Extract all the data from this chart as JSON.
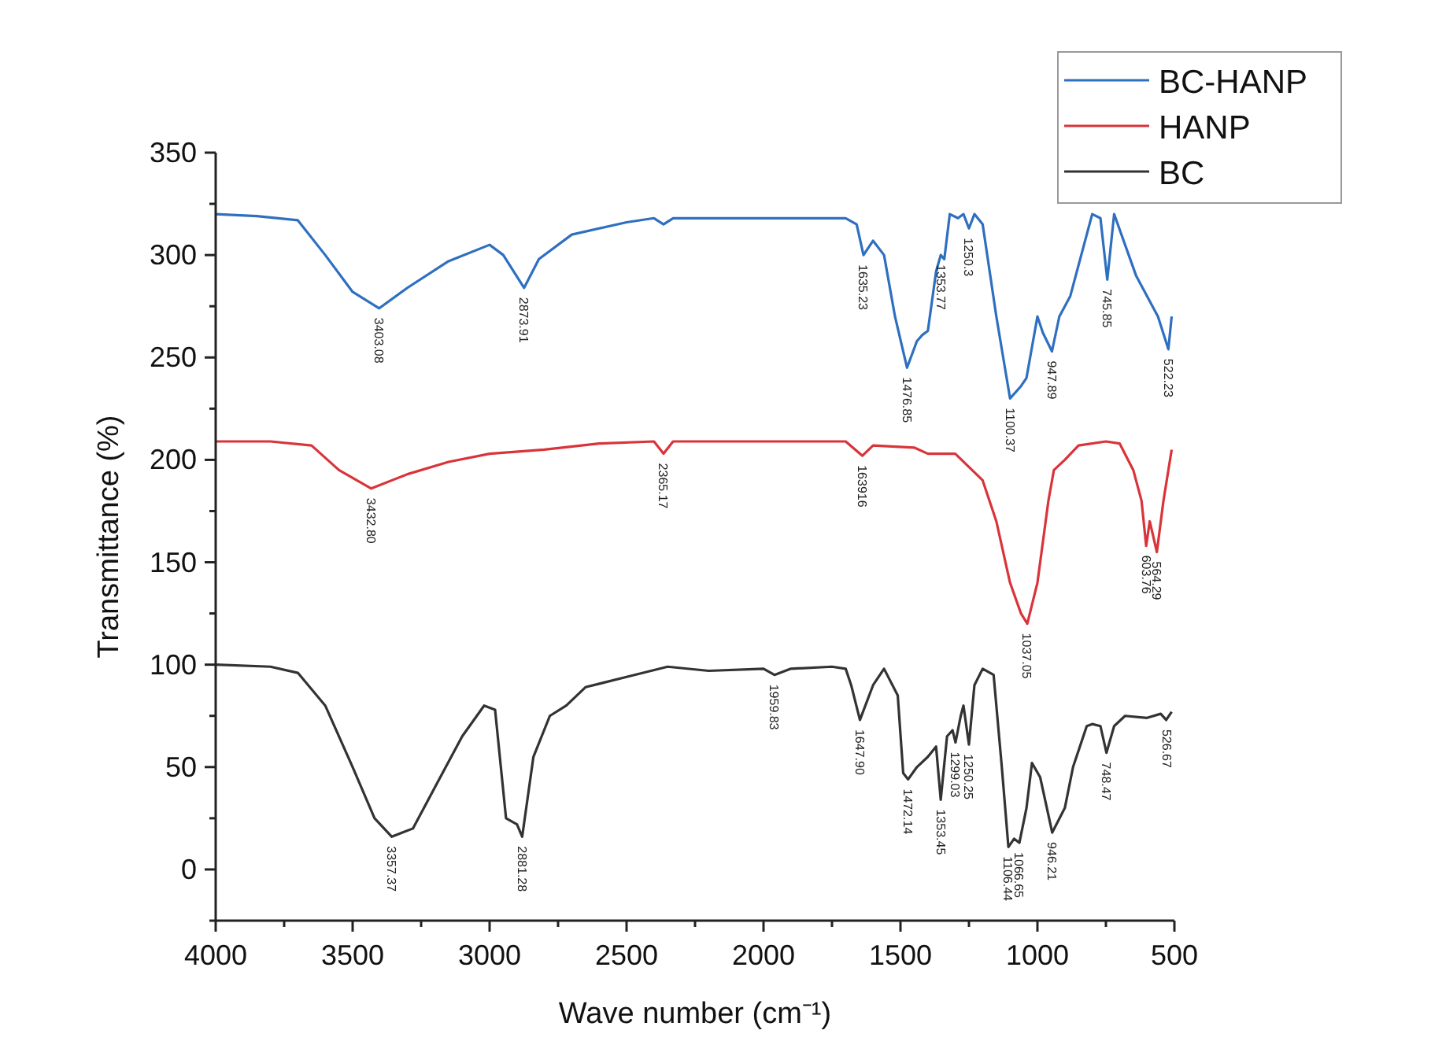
{
  "chart_data": {
    "type": "line",
    "xlabel": "Wave number (cm⁻¹)",
    "ylabel": "Transmittance (%)",
    "xlim": [
      4000,
      500
    ],
    "ylim": [
      -25,
      350
    ],
    "xticks": [
      4000,
      {
        "value": 3750,
        "label": null
      },
      3500,
      {
        "value": 3250,
        "label": null
      },
      3000,
      {
        "value": 2750,
        "label": null
      },
      2500,
      {
        "value": 2250,
        "label": null
      },
      2000,
      {
        "value": 1750,
        "label": null
      },
      1500,
      {
        "value": 1250,
        "label": null
      },
      1000,
      {
        "value": 750,
        "label": null
      },
      500
    ],
    "yticks": [
      {
        "value": -25,
        "label": null
      },
      0,
      {
        "value": 25,
        "label": null
      },
      50,
      {
        "value": 75,
        "label": null
      },
      100,
      {
        "value": 125,
        "label": null
      },
      150,
      {
        "value": 175,
        "label": null
      },
      200,
      {
        "value": 225,
        "label": null
      },
      250,
      {
        "value": 275,
        "label": null
      },
      300,
      {
        "value": 325,
        "label": null
      },
      350
    ],
    "legend": "top right",
    "grid": false,
    "marker": "none",
    "line_style": "solid",
    "series": [
      {
        "name": "BC-HANP",
        "color": "#2f6fc0",
        "x": [
          4000,
          3850,
          3700,
          3600,
          3500,
          3403,
          3300,
          3150,
          3000,
          2950,
          2874,
          2820,
          2700,
          2500,
          2400,
          2365,
          2330,
          2000,
          1700,
          1660,
          1635,
          1600,
          1560,
          1520,
          1476,
          1440,
          1420,
          1400,
          1370,
          1353,
          1340,
          1320,
          1290,
          1270,
          1250,
          1230,
          1200,
          1150,
          1100,
          1060,
          1040,
          1000,
          980,
          947,
          920,
          880,
          800,
          770,
          745,
          720,
          680,
          640,
          600,
          560,
          522,
          510
        ],
        "values": [
          320,
          319,
          317,
          300,
          282,
          274,
          284,
          297,
          305,
          300,
          284,
          298,
          310,
          316,
          318,
          315,
          318,
          318,
          318,
          315,
          300,
          307,
          300,
          270,
          245,
          258,
          261,
          263,
          292,
          300,
          298,
          320,
          318,
          320,
          313,
          320,
          315,
          270,
          230,
          236,
          240,
          270,
          262,
          253,
          270,
          280,
          320,
          318,
          288,
          320,
          305,
          290,
          280,
          270,
          254,
          270
        ]
      },
      {
        "name": "HANP",
        "color": "#d9343a",
        "x": [
          4000,
          3800,
          3650,
          3550,
          3432,
          3300,
          3150,
          3000,
          2800,
          2600,
          2400,
          2365,
          2330,
          2000,
          1700,
          1639,
          1600,
          1450,
          1400,
          1300,
          1200,
          1150,
          1100,
          1060,
          1037,
          1000,
          960,
          940,
          900,
          850,
          750,
          700,
          650,
          620,
          603,
          590,
          564,
          540,
          510
        ],
        "values": [
          209,
          209,
          207,
          195,
          186,
          193,
          199,
          203,
          205,
          208,
          209,
          203,
          209,
          209,
          209,
          202,
          207,
          206,
          203,
          203,
          190,
          170,
          140,
          125,
          120,
          140,
          180,
          195,
          200,
          207,
          209,
          208,
          195,
          180,
          158,
          170,
          155,
          180,
          205
        ]
      },
      {
        "name": "BC",
        "color": "#333333",
        "x": [
          4000,
          3800,
          3700,
          3600,
          3500,
          3420,
          3357,
          3280,
          3200,
          3100,
          3020,
          2980,
          2940,
          2900,
          2881,
          2840,
          2780,
          2720,
          2650,
          2500,
          2350,
          2200,
          2000,
          1960,
          1900,
          1750,
          1700,
          1680,
          1648,
          1600,
          1560,
          1510,
          1490,
          1472,
          1440,
          1400,
          1370,
          1353,
          1330,
          1310,
          1299,
          1280,
          1270,
          1250,
          1230,
          1200,
          1160,
          1130,
          1106,
          1085,
          1066,
          1040,
          1020,
          990,
          946,
          900,
          870,
          820,
          800,
          770,
          748,
          720,
          680,
          600,
          550,
          530,
          510
        ],
        "values": [
          100,
          99,
          96,
          80,
          50,
          25,
          16,
          20,
          40,
          65,
          80,
          78,
          25,
          22,
          16,
          55,
          75,
          80,
          89,
          94,
          99,
          97,
          98,
          95,
          98,
          99,
          98,
          90,
          73,
          90,
          98,
          85,
          47,
          44,
          50,
          55,
          60,
          34,
          65,
          68,
          62,
          75,
          80,
          61,
          90,
          98,
          95,
          50,
          11,
          15,
          13,
          30,
          52,
          45,
          18,
          30,
          50,
          70,
          71,
          70,
          57,
          70,
          75,
          74,
          76,
          73,
          77
        ]
      }
    ],
    "annotations": [
      {
        "text": "3403.08",
        "x": 3403,
        "y": 274
      },
      {
        "text": "2873.91",
        "x": 2874,
        "y": 284
      },
      {
        "text": "1635.23",
        "x": 1635,
        "y": 300
      },
      {
        "text": "1476.85",
        "x": 1476,
        "y": 245
      },
      {
        "text": "1353.77",
        "x": 1353,
        "y": 300
      },
      {
        "text": "1250.3",
        "x": 1250,
        "y": 313
      },
      {
        "text": "1100.37",
        "x": 1100,
        "y": 230
      },
      {
        "text": "947.89",
        "x": 947,
        "y": 253
      },
      {
        "text": "745.85",
        "x": 745,
        "y": 288
      },
      {
        "text": "522.23",
        "x": 522,
        "y": 254
      },
      {
        "text": "3432.80",
        "x": 3432,
        "y": 186
      },
      {
        "text": "2365.17",
        "x": 2365,
        "y": 203
      },
      {
        "text": "163916",
        "x": 1639,
        "y": 202
      },
      {
        "text": "1037.05",
        "x": 1037,
        "y": 120
      },
      {
        "text": "603.76",
        "x": 603,
        "y": 158
      },
      {
        "text": "564.29",
        "x": 564,
        "y": 155
      },
      {
        "text": "3357.37",
        "x": 3357,
        "y": 16
      },
      {
        "text": "2881.28",
        "x": 2881,
        "y": 16
      },
      {
        "text": "1959.83",
        "x": 1960,
        "y": 95
      },
      {
        "text": "1647.90",
        "x": 1648,
        "y": 73
      },
      {
        "text": "1472.14",
        "x": 1472,
        "y": 44
      },
      {
        "text": "1353.45",
        "x": 1353,
        "y": 34
      },
      {
        "text": "1299.03",
        "x": 1299,
        "y": 62
      },
      {
        "text": "1250.25",
        "x": 1250,
        "y": 61
      },
      {
        "text": "1106.44",
        "x": 1106,
        "y": 11
      },
      {
        "text": "1066.65",
        "x": 1066,
        "y": 13
      },
      {
        "text": "946.21",
        "x": 946,
        "y": 18
      },
      {
        "text": "748.47",
        "x": 748,
        "y": 57
      },
      {
        "text": "526.67",
        "x": 526,
        "y": 73
      }
    ]
  }
}
